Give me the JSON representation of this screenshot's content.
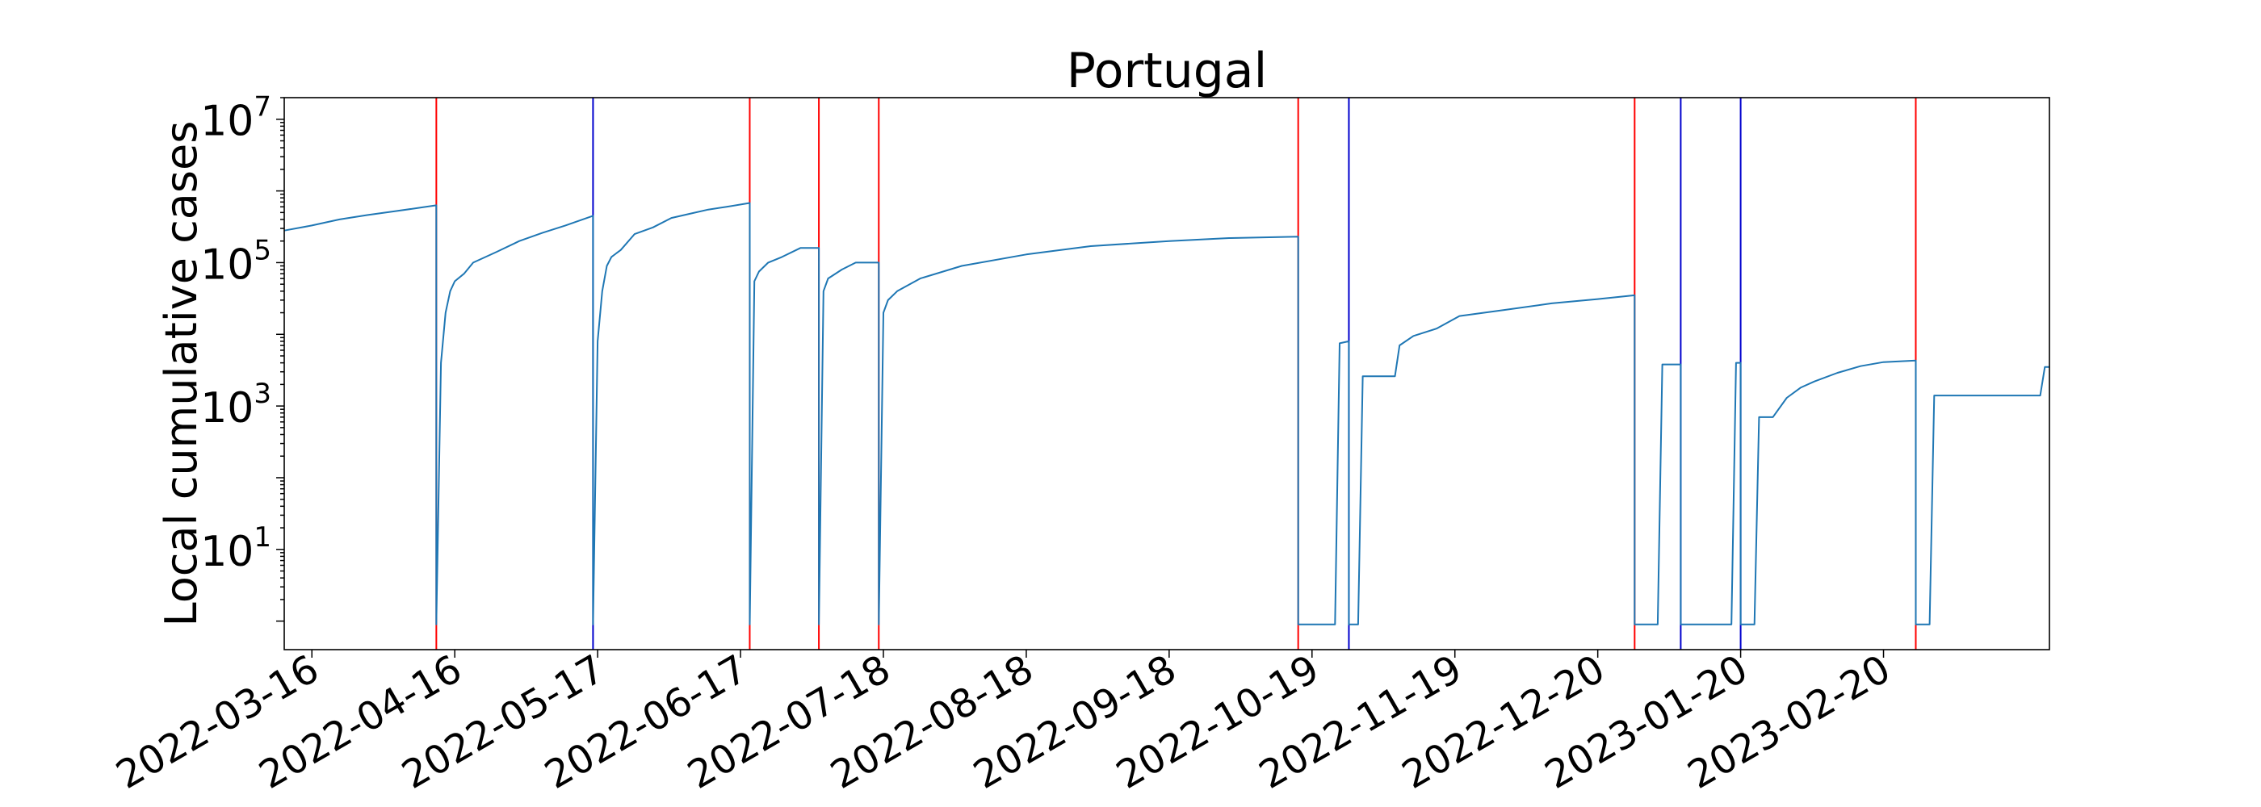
{
  "chart_data": {
    "type": "line",
    "title": "Portugal",
    "xlabel": "",
    "ylabel": "Local cumulative cases",
    "yscale": "log",
    "ylim": [
      0.4,
      20000000
    ],
    "xlim": [
      "2022-03-10",
      "2023-03-28"
    ],
    "grid": false,
    "legend": "none",
    "x_ticks": [
      "2022-03-16",
      "2022-04-16",
      "2022-05-17",
      "2022-06-17",
      "2022-07-18",
      "2022-08-18",
      "2022-09-18",
      "2022-10-19",
      "2022-11-19",
      "2022-12-20",
      "2023-01-20",
      "2023-02-20"
    ],
    "y_ticks": [
      {
        "base": "10",
        "exp": "1",
        "value": 10
      },
      {
        "base": "10",
        "exp": "3",
        "value": 1000
      },
      {
        "base": "10",
        "exp": "5",
        "value": 100000
      },
      {
        "base": "10",
        "exp": "7",
        "value": 10000000
      }
    ],
    "colors": {
      "line": "#1f77b4",
      "red_marker": "#ff0000",
      "blue_marker": "#0000cd"
    },
    "vertical_markers": [
      {
        "date": "2022-04-12",
        "color": "red"
      },
      {
        "date": "2022-05-16",
        "color": "blue"
      },
      {
        "date": "2022-06-19",
        "color": "red"
      },
      {
        "date": "2022-07-04",
        "color": "red"
      },
      {
        "date": "2022-07-17",
        "color": "red"
      },
      {
        "date": "2022-10-16",
        "color": "red"
      },
      {
        "date": "2022-10-27",
        "color": "blue"
      },
      {
        "date": "2022-12-28",
        "color": "red"
      },
      {
        "date": "2023-01-07",
        "color": "blue"
      },
      {
        "date": "2023-01-20",
        "color": "blue"
      },
      {
        "date": "2023-02-27",
        "color": "red"
      }
    ],
    "series": [
      {
        "x": [
          "2022-03-10",
          "2022-03-16",
          "2022-03-22",
          "2022-03-28",
          "2022-04-03",
          "2022-04-09",
          "2022-04-12",
          "2022-04-12",
          "2022-04-13",
          "2022-04-14",
          "2022-04-15",
          "2022-04-16",
          "2022-04-18",
          "2022-04-20",
          "2022-04-25",
          "2022-04-30",
          "2022-05-05",
          "2022-05-10",
          "2022-05-16",
          "2022-05-16",
          "2022-05-17",
          "2022-05-18",
          "2022-05-19",
          "2022-05-20",
          "2022-05-22",
          "2022-05-25",
          "2022-05-29",
          "2022-06-02",
          "2022-06-06",
          "2022-06-10",
          "2022-06-14",
          "2022-06-19",
          "2022-06-19",
          "2022-06-20",
          "2022-06-21",
          "2022-06-23",
          "2022-06-26",
          "2022-06-30",
          "2022-07-04",
          "2022-07-04",
          "2022-07-05",
          "2022-07-06",
          "2022-07-09",
          "2022-07-12",
          "2022-07-17",
          "2022-07-17",
          "2022-07-18",
          "2022-07-19",
          "2022-07-21",
          "2022-07-26",
          "2022-08-04",
          "2022-08-18",
          "2022-09-01",
          "2022-09-18",
          "2022-10-01",
          "2022-10-16",
          "2022-10-16",
          "2022-10-24",
          "2022-10-25",
          "2022-10-27",
          "2022-10-27",
          "2022-10-29",
          "2022-10-30",
          "2022-11-06",
          "2022-11-07",
          "2022-11-10",
          "2022-11-15",
          "2022-11-20",
          "2022-11-30",
          "2022-12-10",
          "2022-12-20",
          "2022-12-28",
          "2022-12-28",
          "2023-01-02",
          "2023-01-03",
          "2023-01-07",
          "2023-01-07",
          "2023-01-18",
          "2023-01-19",
          "2023-01-20",
          "2023-01-20",
          "2023-01-23",
          "2023-01-24",
          "2023-01-27",
          "2023-01-30",
          "2023-02-02",
          "2023-02-05",
          "2023-02-10",
          "2023-02-15",
          "2023-02-20",
          "2023-02-27",
          "2023-02-27",
          "2023-03-02",
          "2023-03-03",
          "2023-03-10",
          "2023-03-26",
          "2023-03-27",
          "2023-03-28"
        ],
        "y": [
          280000,
          330000,
          400000,
          460000,
          520000,
          590000,
          630000,
          0.9,
          4000,
          20000,
          40000,
          55000,
          70000,
          100000,
          140000,
          200000,
          260000,
          330000,
          450000,
          0.9,
          8000,
          40000,
          90000,
          120000,
          150000,
          250000,
          310000,
          420000,
          480000,
          550000,
          600000,
          680000,
          0.9,
          55000,
          75000,
          100000,
          120000,
          160000,
          160000,
          0.9,
          40000,
          60000,
          80000,
          100000,
          100000,
          0.9,
          20000,
          30000,
          40000,
          60000,
          90000,
          130000,
          170000,
          200000,
          220000,
          230000,
          0.9,
          0.9,
          7500,
          8000,
          0.9,
          0.9,
          2600,
          2600,
          7000,
          9500,
          12000,
          18000,
          22000,
          27000,
          31000,
          35000,
          0.9,
          0.9,
          3800,
          3800,
          0.9,
          0.9,
          4000,
          4000,
          0.9,
          0.9,
          700,
          700,
          1300,
          1800,
          2200,
          2900,
          3600,
          4100,
          4300,
          0.9,
          0.9,
          1400,
          1400,
          1400,
          3500,
          3500
        ]
      }
    ]
  }
}
